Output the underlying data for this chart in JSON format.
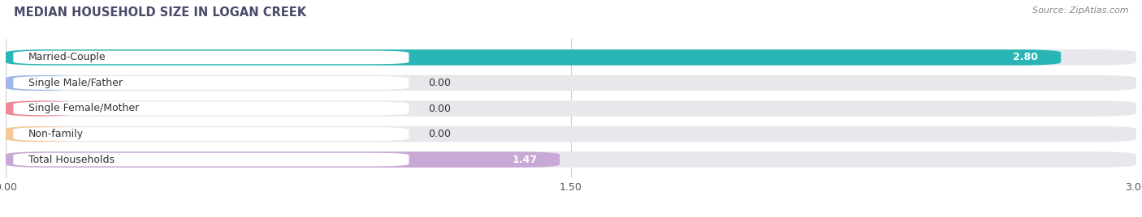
{
  "title": "MEDIAN HOUSEHOLD SIZE IN LOGAN CREEK",
  "source": "Source: ZipAtlas.com",
  "categories": [
    "Married-Couple",
    "Single Male/Father",
    "Single Female/Mother",
    "Non-family",
    "Total Households"
  ],
  "values": [
    2.8,
    0.0,
    0.0,
    0.0,
    1.47
  ],
  "bar_colors": [
    "#29b5b5",
    "#a0b8e8",
    "#f08898",
    "#f5c898",
    "#c8a8d4"
  ],
  "background_color": "#ffffff",
  "bar_bg_color": "#e8e8ec",
  "xlim": [
    0,
    3.0
  ],
  "xticks": [
    0.0,
    1.5,
    3.0
  ],
  "xtick_labels": [
    "0.00",
    "1.50",
    "3.00"
  ],
  "title_fontsize": 10.5,
  "label_fontsize": 9,
  "value_fontsize": 9,
  "source_fontsize": 8,
  "title_color": "#4a4a6a",
  "source_color": "#888888",
  "label_color": "#333333",
  "grid_color": "#cccccc"
}
